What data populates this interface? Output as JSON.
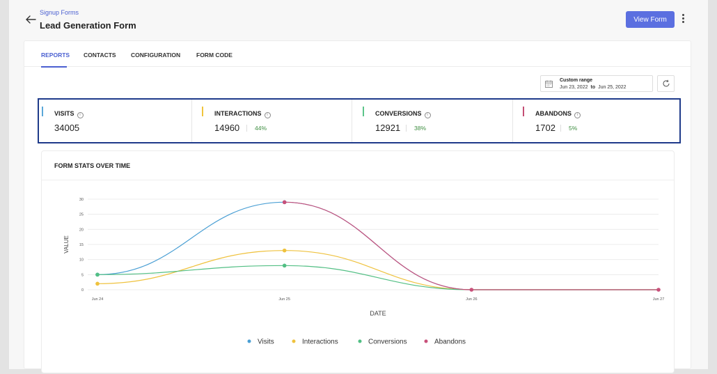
{
  "header": {
    "breadcrumb": "Signup Forms",
    "title": "Lead Generation Form",
    "view_button": "View Form"
  },
  "tabs": [
    {
      "label": "REPORTS",
      "active": true
    },
    {
      "label": "CONTACTS",
      "active": false
    },
    {
      "label": "CONFIGURATION",
      "active": false
    },
    {
      "label": "FORM CODE",
      "active": false
    }
  ],
  "date_range": {
    "label": "Custom range",
    "start": "Jun 23, 2022",
    "separator": "to",
    "end": "Jun 25, 2022"
  },
  "stats": [
    {
      "label": "VISITS",
      "value": "34005",
      "pct": "",
      "color": "#5aa7d8"
    },
    {
      "label": "INTERACTIONS",
      "value": "14960",
      "pct": "44%",
      "color": "#f0c43c"
    },
    {
      "label": "CONVERSIONS",
      "value": "12921",
      "pct": "38%",
      "color": "#5cc48a"
    },
    {
      "label": "ABANDONS",
      "value": "1702",
      "pct": "5%",
      "color": "#c44d74"
    }
  ],
  "chart": {
    "title": "FORM STATS OVER TIME"
  },
  "chart_data": {
    "type": "line",
    "x": [
      "Jun 24",
      "Jun 25",
      "Jun 26",
      "Jun 27"
    ],
    "ylim": [
      0,
      30
    ],
    "yticks": [
      0,
      5,
      10,
      15,
      20,
      25,
      30
    ],
    "xlabel": "DATE",
    "ylabel": "VALUE",
    "grid": true,
    "legend_position": "bottom",
    "series": [
      {
        "name": "Visits",
        "color": "#4a9fd4",
        "values": [
          5,
          29,
          0,
          0
        ]
      },
      {
        "name": "Interactions",
        "color": "#efc23e",
        "values": [
          2,
          13,
          0,
          0
        ]
      },
      {
        "name": "Conversions",
        "color": "#52bf84",
        "values": [
          5,
          8,
          0,
          0
        ]
      },
      {
        "name": "Abandons",
        "color": "#c8507a",
        "values": [
          null,
          29,
          0,
          0
        ]
      }
    ]
  }
}
